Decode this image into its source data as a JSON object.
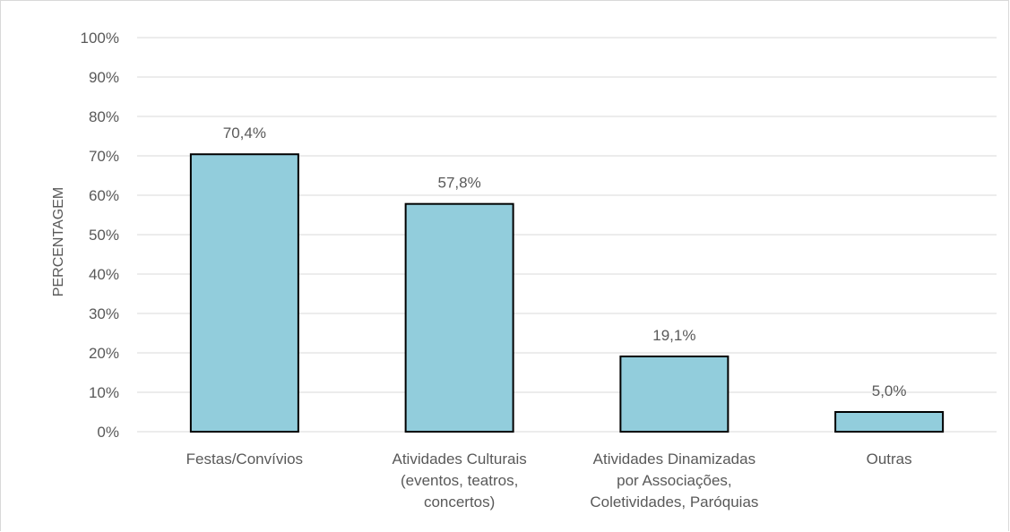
{
  "chart_data": {
    "type": "bar",
    "title": "",
    "xlabel": "",
    "ylabel": "PERCENTAGEM",
    "ylim": [
      0,
      100
    ],
    "y_ticks": [
      "0%",
      "10%",
      "20%",
      "30%",
      "40%",
      "50%",
      "60%",
      "70%",
      "80%",
      "90%",
      "100%"
    ],
    "grid": true,
    "categories": [
      [
        "Festas/Convívios"
      ],
      [
        "Atividades Culturais",
        "(eventos, teatros,",
        "concertos)"
      ],
      [
        "Atividades Dinamizadas",
        "por Associações,",
        "Coletividades, Paróquias"
      ],
      [
        "Outras"
      ]
    ],
    "values": [
      70.4,
      57.8,
      19.1,
      5.0
    ],
    "data_labels": [
      "70,4%",
      "57,8%",
      "19,1%",
      "5,0%"
    ],
    "colors": {
      "bar_fill": "#92cddc",
      "bar_stroke": "#000000",
      "grid": "#d9d9d9",
      "text": "#595959"
    }
  }
}
